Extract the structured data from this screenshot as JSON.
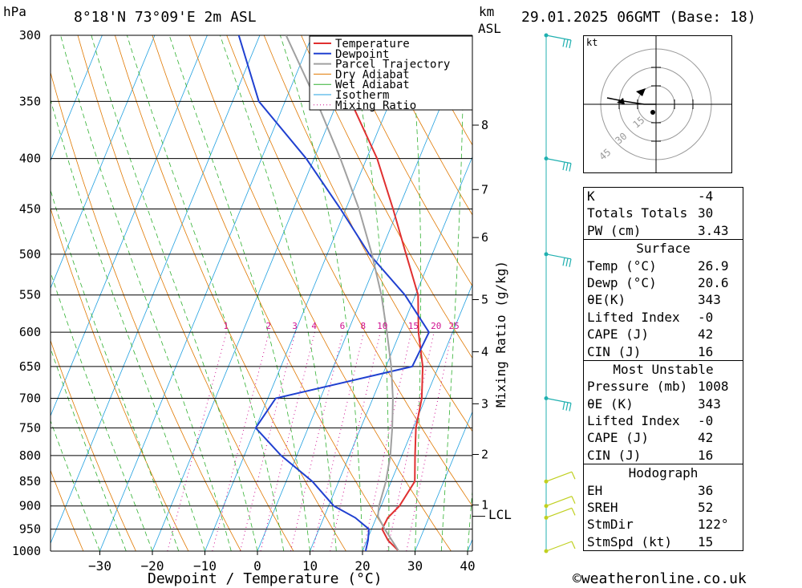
{
  "header": {
    "pressure_unit": "hPa",
    "location": "8°18'N 73°09'E 2m ASL",
    "km_label": "km",
    "asl_label": "ASL",
    "datetime": "29.01.2025 06GMT (Base: 18)"
  },
  "chart_data": {
    "type": "skew-t log-p",
    "xlabel": "Dewpoint / Temperature (°C)",
    "ylabel": "hPa",
    "y2label": "Mixing Ratio (g/kg)",
    "x_ticks": [
      -30,
      -20,
      -10,
      0,
      10,
      20,
      30,
      40
    ],
    "pressure_levels": [
      300,
      350,
      400,
      450,
      500,
      550,
      600,
      650,
      700,
      750,
      800,
      850,
      900,
      950,
      1000
    ],
    "km_ticks": [
      {
        "label": "8",
        "pressure": 370
      },
      {
        "label": "7",
        "pressure": 430
      },
      {
        "label": "6",
        "pressure": 481
      },
      {
        "label": "5",
        "pressure": 556
      },
      {
        "label": "4",
        "pressure": 628
      },
      {
        "label": "3",
        "pressure": 709
      },
      {
        "label": "2",
        "pressure": 798
      },
      {
        "label": "1",
        "pressure": 898
      }
    ],
    "lcl": {
      "label": "LCL",
      "pressure": 922
    },
    "mixing_ratio_labels": [
      "1",
      "2",
      "3",
      "4",
      "6",
      "8",
      "10",
      "15",
      "20",
      "25"
    ],
    "mixing_ratio_values": [
      1,
      2,
      3,
      4,
      6,
      8,
      10,
      15,
      20,
      25
    ],
    "legend": [
      "Temperature",
      "Dewpoint",
      "Parcel Trajectory",
      "Dry Adiabat",
      "Wet Adiabat",
      "Isotherm",
      "Mixing Ratio"
    ],
    "legend_position": "top-center",
    "colors": {
      "temperature": "#e03030",
      "dewpoint": "#2040d0",
      "parcel": "#a0a0a0",
      "dry_adiabat": "#e07800",
      "wet_adiabat": "#30b030",
      "isotherm": "#20a0e0",
      "mixing_ratio": "#d01090",
      "wind": "#20b0b0",
      "wind_low": "#c0d020"
    },
    "series": [
      {
        "name": "Temperature",
        "points": [
          [
            1000,
            26.9
          ],
          [
            975,
            24
          ],
          [
            950,
            22
          ],
          [
            925,
            22.2
          ],
          [
            900,
            23.5
          ],
          [
            850,
            24.5
          ],
          [
            800,
            22.5
          ],
          [
            750,
            20.5
          ],
          [
            700,
            19.3
          ],
          [
            650,
            17
          ],
          [
            600,
            13.5
          ],
          [
            550,
            10.5
          ],
          [
            500,
            5
          ],
          [
            450,
            -1
          ],
          [
            400,
            -8
          ],
          [
            350,
            -17.5
          ]
        ]
      },
      {
        "name": "Dewpoint",
        "points": [
          [
            1000,
            20.6
          ],
          [
            975,
            20.2
          ],
          [
            950,
            19.5
          ],
          [
            925,
            16
          ],
          [
            900,
            11
          ],
          [
            850,
            5
          ],
          [
            800,
            -3
          ],
          [
            750,
            -10
          ],
          [
            700,
            -8.5
          ],
          [
            650,
            15
          ],
          [
            600,
            15.5
          ],
          [
            550,
            8
          ],
          [
            500,
            -2
          ],
          [
            450,
            -11
          ],
          [
            400,
            -21.5
          ],
          [
            350,
            -35
          ],
          [
            300,
            -44
          ]
        ]
      },
      {
        "name": "Parcel Trajectory",
        "points": [
          [
            1000,
            26.9
          ],
          [
            950,
            22.5
          ],
          [
            922,
            20.2
          ],
          [
            900,
            19.6
          ],
          [
            850,
            19
          ],
          [
            800,
            17.8
          ],
          [
            750,
            16
          ],
          [
            700,
            13.8
          ],
          [
            650,
            11
          ],
          [
            600,
            7.5
          ],
          [
            550,
            3.5
          ],
          [
            500,
            -1.5
          ],
          [
            450,
            -7.5
          ],
          [
            400,
            -15
          ],
          [
            350,
            -24
          ],
          [
            300,
            -35
          ]
        ]
      }
    ],
    "winds": [
      {
        "pressure": 300,
        "level": "upper"
      },
      {
        "pressure": 400,
        "level": "upper"
      },
      {
        "pressure": 500,
        "level": "upper"
      },
      {
        "pressure": 700,
        "level": "upper"
      },
      {
        "pressure": 850,
        "level": "low"
      },
      {
        "pressure": 900,
        "level": "low"
      },
      {
        "pressure": 925,
        "level": "low"
      },
      {
        "pressure": 1000,
        "level": "low"
      }
    ],
    "hodograph": {
      "unit": "kt",
      "rings": [
        "15",
        "30",
        "45"
      ]
    }
  },
  "table": {
    "indices": [
      {
        "label": "K",
        "value": "-4"
      },
      {
        "label": "Totals Totals",
        "value": "30"
      },
      {
        "label": "PW (cm)",
        "value": "3.43"
      }
    ],
    "surface": {
      "title": "Surface",
      "rows": [
        {
          "label": "Temp (°C)",
          "value": "26.9"
        },
        {
          "label": "Dewp (°C)",
          "value": "20.6"
        },
        {
          "label": "θE(K)",
          "value": "343"
        },
        {
          "label": "Lifted Index",
          "value": "-0"
        },
        {
          "label": "CAPE (J)",
          "value": "42"
        },
        {
          "label": "CIN (J)",
          "value": "16"
        }
      ]
    },
    "most_unstable": {
      "title": "Most Unstable",
      "rows": [
        {
          "label": "Pressure (mb)",
          "value": "1008"
        },
        {
          "label": "θE (K)",
          "value": "343"
        },
        {
          "label": "Lifted Index",
          "value": "-0"
        },
        {
          "label": "CAPE (J)",
          "value": "42"
        },
        {
          "label": "CIN (J)",
          "value": "16"
        }
      ]
    },
    "hodograph": {
      "title": "Hodograph",
      "rows": [
        {
          "label": "EH",
          "value": "36"
        },
        {
          "label": "SREH",
          "value": "52"
        },
        {
          "label": "StmDir",
          "value": "122°"
        },
        {
          "label": "StmSpd (kt)",
          "value": "15"
        }
      ]
    }
  },
  "footer": {
    "copyright_symbol": "©",
    "site": "weatheronline.co.uk"
  }
}
